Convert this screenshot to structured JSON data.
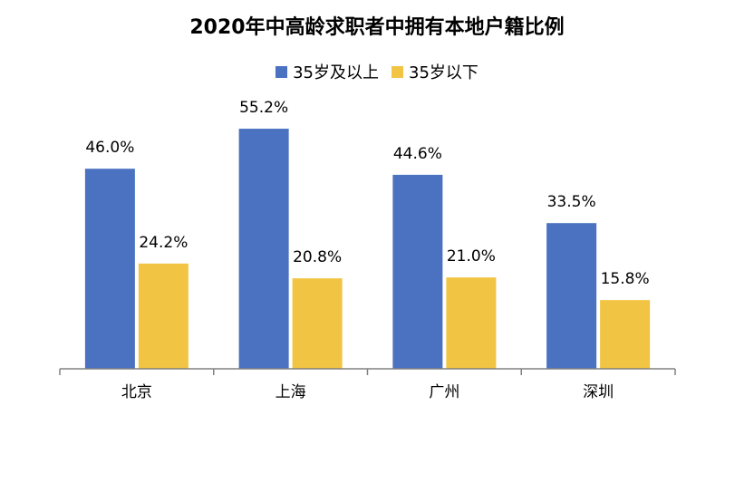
{
  "colors": {
    "series_a": "#4a72c1",
    "series_b": "#f2c443",
    "axis": "#808080",
    "text": "#000000"
  },
  "chart_data": {
    "type": "bar",
    "title": "2020年中高龄求职者中拥有本地户籍比例",
    "categories": [
      "北京",
      "上海",
      "广州",
      "深圳"
    ],
    "series": [
      {
        "name": "35岁及以上",
        "values": [
          46.0,
          55.2,
          44.6,
          33.5
        ],
        "labels": [
          "46.0%",
          "55.2%",
          "44.6%",
          "33.5%"
        ]
      },
      {
        "name": "35岁以下",
        "values": [
          24.2,
          20.8,
          21.0,
          15.8
        ],
        "labels": [
          "24.2%",
          "20.8%",
          "21.0%",
          "15.8%"
        ]
      }
    ],
    "ylim": [
      0,
      60
    ],
    "legend": "top",
    "grid": false
  }
}
